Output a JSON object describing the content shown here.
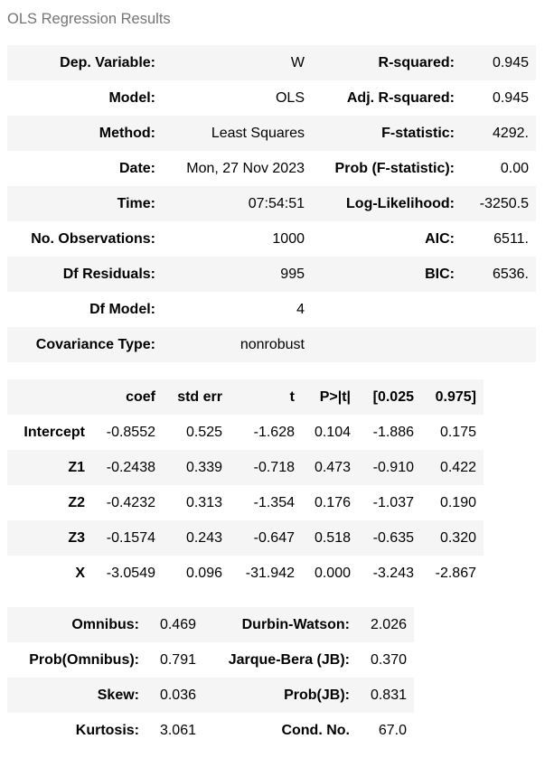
{
  "title": "OLS Regression Results",
  "model_info": [
    [
      "Dep. Variable:",
      "W",
      "R-squared:",
      "0.945"
    ],
    [
      "Model:",
      "OLS",
      "Adj. R-squared:",
      "0.945"
    ],
    [
      "Method:",
      "Least Squares",
      "F-statistic:",
      "4292."
    ],
    [
      "Date:",
      "Mon, 27 Nov 2023",
      "Prob (F-statistic):",
      "0.00"
    ],
    [
      "Time:",
      "07:54:51",
      "Log-Likelihood:",
      "-3250.5"
    ],
    [
      "No. Observations:",
      "1000",
      "AIC:",
      "6511."
    ],
    [
      "Df Residuals:",
      "995",
      "BIC:",
      "6536."
    ],
    [
      "Df Model:",
      "4",
      "",
      ""
    ],
    [
      "Covariance Type:",
      "nonrobust",
      "",
      ""
    ]
  ],
  "coef_headers": [
    "",
    "coef",
    "std err",
    "t",
    "P>|t|",
    "[0.025",
    "0.975]"
  ],
  "coef_rows": [
    [
      "Intercept",
      "-0.8552",
      "0.525",
      "-1.628",
      "0.104",
      "-1.886",
      "0.175"
    ],
    [
      "Z1",
      "-0.2438",
      "0.339",
      "-0.718",
      "0.473",
      "-0.910",
      "0.422"
    ],
    [
      "Z2",
      "-0.4232",
      "0.313",
      "-1.354",
      "0.176",
      "-1.037",
      "0.190"
    ],
    [
      "Z3",
      "-0.1574",
      "0.243",
      "-0.647",
      "0.518",
      "-0.635",
      "0.320"
    ],
    [
      "X",
      "-3.0549",
      "0.096",
      "-31.942",
      "0.000",
      "-3.243",
      "-2.867"
    ]
  ],
  "diagnostics": [
    [
      "Omnibus:",
      "0.469",
      "Durbin-Watson:",
      "2.026"
    ],
    [
      "Prob(Omnibus):",
      "0.791",
      "Jarque-Bera (JB):",
      "0.370"
    ],
    [
      "Skew:",
      "0.036",
      "Prob(JB):",
      "0.831"
    ],
    [
      "Kurtosis:",
      "3.061",
      "Cond. No.",
      "67.0"
    ]
  ]
}
